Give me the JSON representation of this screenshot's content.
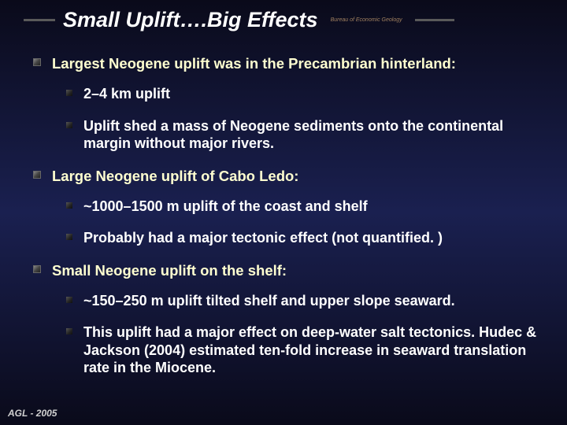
{
  "title": "Small Uplift….Big Effects",
  "subtitle": "Bureau of Economic Geology",
  "colors": {
    "background_gradient": [
      "#0a0a1a",
      "#1a2050",
      "#0a0a1a"
    ],
    "title_color": "#ffffff",
    "subtitle_color": "#a08060",
    "rule_color": "#5a5a5a",
    "l1_text_color": "#ffffd0",
    "l2_text_color": "#ffffff",
    "footer_color": "#d0d0d0"
  },
  "typography": {
    "title_fontsize": 27,
    "title_style": "bold italic",
    "l1_fontsize": 18.5,
    "l1_weight": "bold",
    "l2_fontsize": 18,
    "l2_weight": "bold",
    "footer_fontsize": 12,
    "footer_style": "italic bold"
  },
  "bullets": [
    {
      "text": "Largest Neogene uplift was in the Precambrian hinterland:",
      "children": [
        {
          "text": "2–4 km uplift"
        },
        {
          "text": "Uplift shed a mass of Neogene sediments onto the continental margin without major rivers."
        }
      ]
    },
    {
      "text": "Large Neogene uplift of Cabo Ledo:",
      "children": [
        {
          "text": "~1000–1500 m uplift of the coast and shelf"
        },
        {
          "text": "Probably had a major tectonic effect (not quantified. )"
        }
      ]
    },
    {
      "text": "Small Neogene uplift on the shelf:",
      "children": [
        {
          "text": "~150–250 m uplift tilted shelf and upper slope seaward."
        },
        {
          "text": "This uplift had a major effect on deep-water salt tectonics. Hudec & Jackson (2004) estimated ten-fold increase in seaward translation rate in the Miocene."
        }
      ]
    }
  ],
  "footer": "AGL - 2005"
}
